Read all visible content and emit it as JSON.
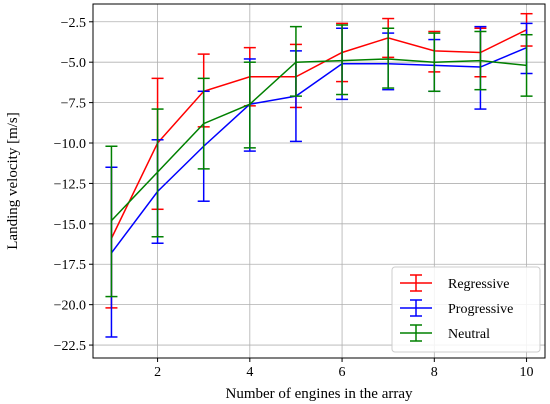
{
  "chart_data": {
    "type": "line",
    "xlabel": "Number of engines in the array",
    "ylabel": "Landing velocity [m/s]",
    "xlim": [
      0.6,
      10.4
    ],
    "ylim": [
      -23.3,
      -1.4
    ],
    "xticks": [
      2,
      4,
      6,
      8,
      10
    ],
    "yticks": [
      -22.5,
      -20.0,
      -17.5,
      -15.0,
      -12.5,
      -10.0,
      -7.5,
      -5.0,
      -2.5
    ],
    "xtick_labels": [
      "2",
      "4",
      "6",
      "8",
      "10"
    ],
    "ytick_labels": [
      "−22.5",
      "−20.0",
      "−17.5",
      "−15.0",
      "−12.5",
      "−10.0",
      "−7.5",
      "−5.0",
      "−2.5"
    ],
    "grid": true,
    "legend_position": "lower-right",
    "error_bars": true,
    "x": [
      1,
      2,
      3,
      4,
      5,
      6,
      7,
      8,
      9,
      10
    ],
    "series": [
      {
        "name": "Regressive",
        "color": "#ff0000",
        "values": [
          -15.9,
          -10.0,
          -6.8,
          -5.9,
          -5.9,
          -4.4,
          -3.5,
          -4.3,
          -4.4,
          -3.0
        ],
        "err_high": [
          -11.5,
          -6.0,
          -4.5,
          -4.1,
          -3.9,
          -2.6,
          -2.3,
          -3.1,
          -2.9,
          -2.0
        ],
        "err_low": [
          -20.2,
          -14.1,
          -9.0,
          -7.7,
          -7.8,
          -6.2,
          -4.7,
          -5.6,
          -5.9,
          -4.0
        ]
      },
      {
        "name": "Progressive",
        "color": "#0000ff",
        "values": [
          -16.8,
          -13.0,
          -10.2,
          -7.6,
          -7.1,
          -5.1,
          -5.1,
          -5.2,
          -5.3,
          -4.1
        ],
        "err_high": [
          -11.5,
          -9.8,
          -6.8,
          -4.8,
          -4.3,
          -2.9,
          -3.2,
          -3.6,
          -2.8,
          -2.6
        ],
        "err_low": [
          -22.0,
          -16.2,
          -13.6,
          -10.5,
          -9.9,
          -7.3,
          -6.7,
          -6.8,
          -7.9,
          -5.7
        ]
      },
      {
        "name": "Neutral",
        "color": "#008000",
        "values": [
          -14.8,
          -11.8,
          -8.8,
          -7.6,
          -5.0,
          -4.9,
          -4.8,
          -5.0,
          -4.9,
          -5.2
        ],
        "err_high": [
          -10.2,
          -7.9,
          -6.0,
          -5.0,
          -2.8,
          -2.7,
          -2.9,
          -3.2,
          -3.1,
          -3.3
        ],
        "err_low": [
          -19.5,
          -15.8,
          -11.6,
          -10.3,
          -7.1,
          -7.0,
          -6.6,
          -6.8,
          -6.7,
          -7.1
        ]
      }
    ]
  }
}
